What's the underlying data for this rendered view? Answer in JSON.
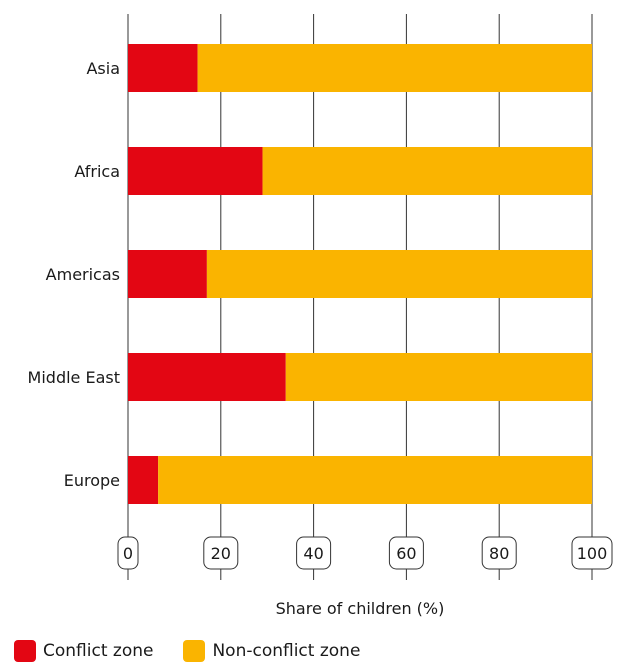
{
  "chart_data": {
    "type": "bar",
    "orientation": "horizontal",
    "stacked": true,
    "categories": [
      "Asia",
      "Africa",
      "Americas",
      "Middle East",
      "Europe"
    ],
    "series": [
      {
        "name": "Conflict zone",
        "color": "#e30613",
        "values": [
          15,
          29,
          17,
          34,
          6.5
        ]
      },
      {
        "name": "Non-conflict zone",
        "color": "#fab400",
        "values": [
          85,
          71,
          83,
          66,
          93.5
        ]
      }
    ],
    "xlabel": "Share of children (%)",
    "xlim": [
      0,
      100
    ],
    "xticks": [
      "0",
      "20",
      "40",
      "60",
      "80",
      "100"
    ],
    "grid": true,
    "legend_position": "bottom-left"
  }
}
